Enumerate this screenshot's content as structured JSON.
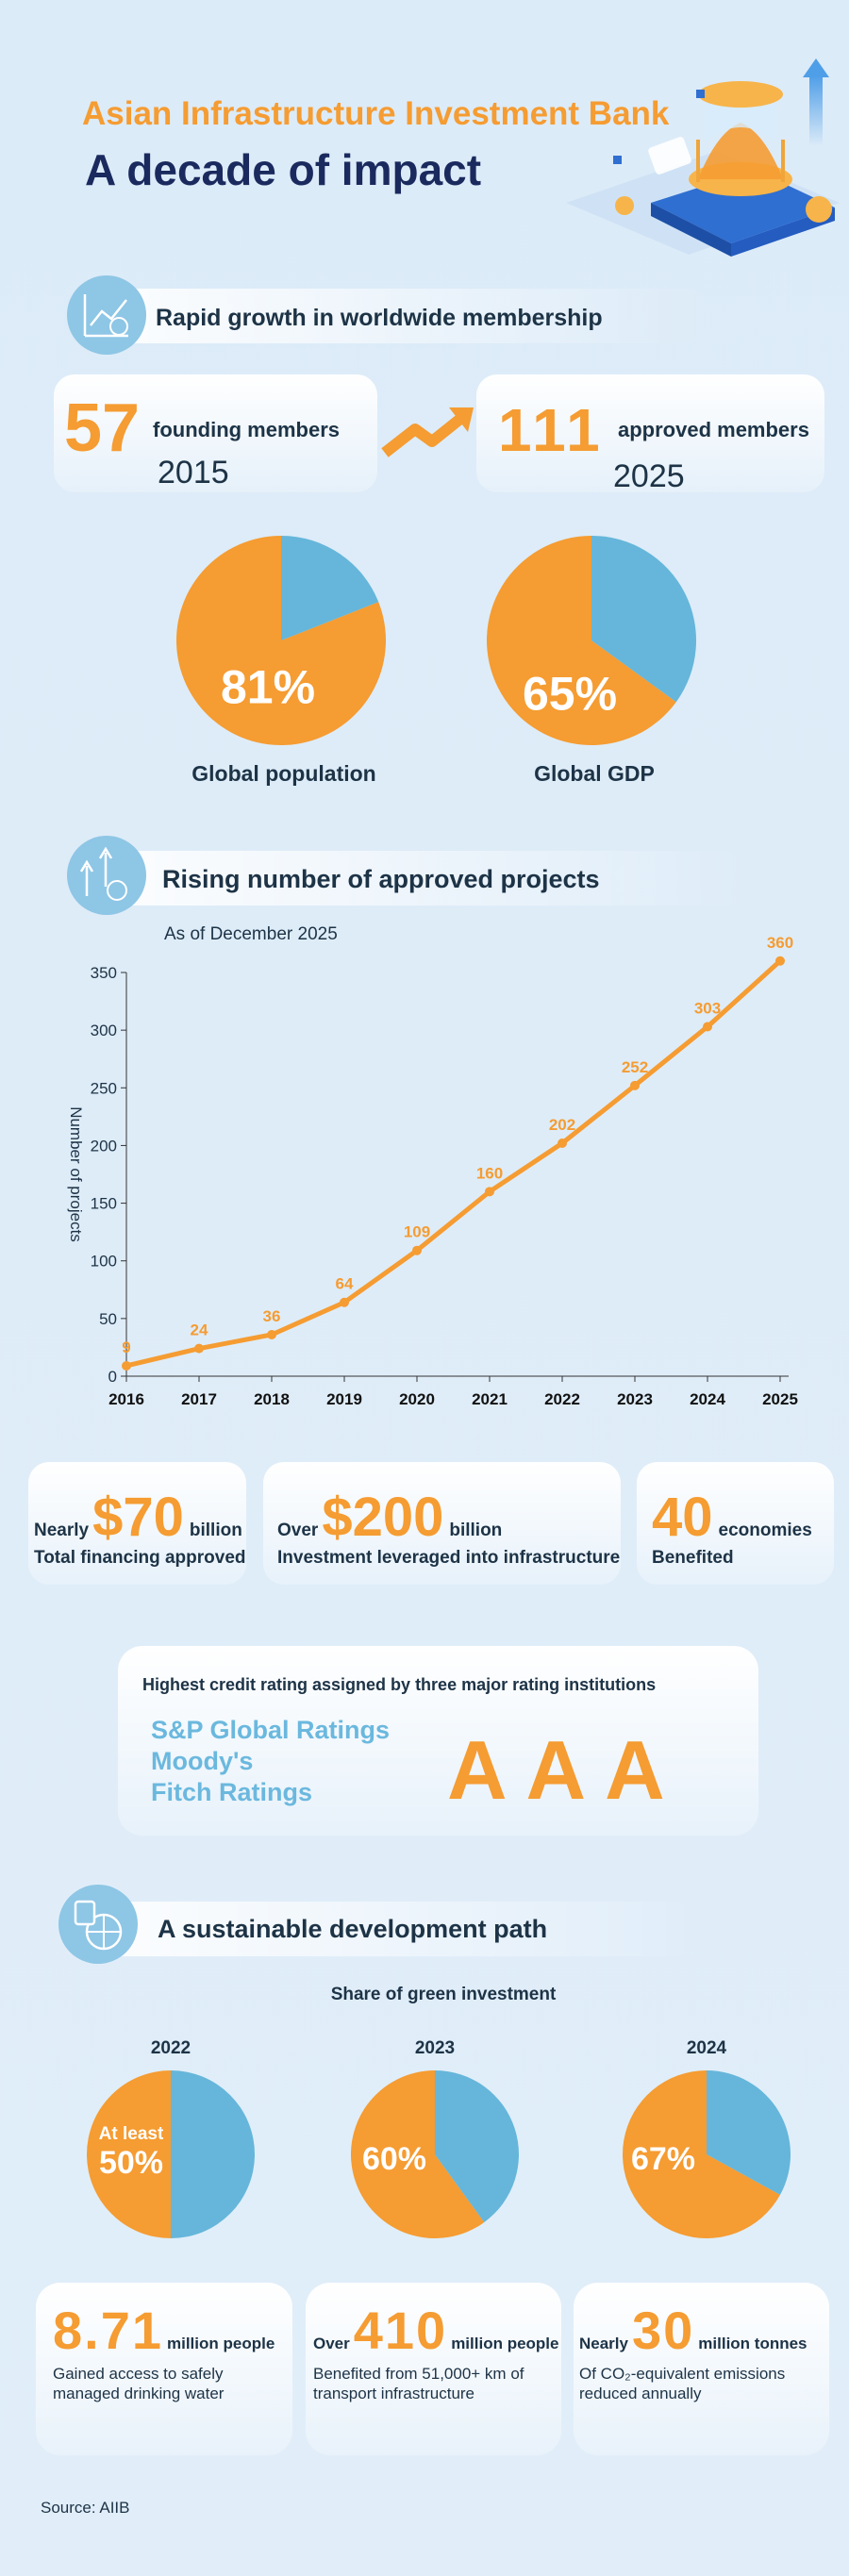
{
  "header": {
    "title": "Asian Infrastructure Investment Bank",
    "subtitle": "A decade of impact"
  },
  "membership": {
    "heading": "Rapid growth in worldwide membership",
    "founding": {
      "number": "57",
      "label": "founding members",
      "year": "2015"
    },
    "approved": {
      "number": "111",
      "label": "approved members",
      "year": "2025"
    }
  },
  "projects": {
    "heading": "Rising number of approved projects",
    "note": "As of December 2025"
  },
  "stats": [
    {
      "prefix": "Nearly",
      "number": "$70",
      "unit": "billion",
      "caption": "Total financing approved"
    },
    {
      "prefix": "Over",
      "number": "$200",
      "unit": "billion",
      "caption": "Investment leveraged into infrastructure"
    },
    {
      "number": "40",
      "unit": "economies",
      "caption": "Benefited"
    }
  ],
  "credit": {
    "heading": "Highest credit rating assigned by three major rating institutions",
    "agencies": [
      "S&P Global Ratings",
      "Moody's",
      "Fitch Ratings"
    ],
    "rating": "AAA"
  },
  "sustainable": {
    "heading": "A sustainable development path",
    "subheading": "Share of green investment"
  },
  "impacts": [
    {
      "number": "8.71",
      "unit": "million people",
      "caption_lines": [
        "Gained access to safely",
        "managed drinking water"
      ]
    },
    {
      "prefix": "Over",
      "number": "410",
      "unit": "million people",
      "caption_lines": [
        "Benefited from 51,000+ km of",
        "transport infrastructure"
      ]
    },
    {
      "prefix": "Nearly",
      "number": "30",
      "unit": "million tonnes",
      "caption_lines": [
        "Of CO₂-equivalent emissions",
        "reduced annually"
      ]
    }
  ],
  "source": "Source: AIIB",
  "chart_data": [
    {
      "type": "pie",
      "title": "Global population",
      "values": [
        81,
        19
      ],
      "value_labels": [
        "81%",
        null
      ],
      "colors": [
        "#f59c32",
        "#65b6da"
      ]
    },
    {
      "type": "pie",
      "title": "Global GDP",
      "values": [
        65,
        35
      ],
      "value_labels": [
        "65%",
        null
      ],
      "colors": [
        "#f59c32",
        "#65b6da"
      ]
    },
    {
      "type": "line",
      "y_label": "Number of projects",
      "x": [
        2016,
        2017,
        2018,
        2019,
        2020,
        2021,
        2022,
        2023,
        2024,
        2025
      ],
      "series": [
        {
          "values": [
            9,
            24,
            36,
            64,
            109,
            160,
            202,
            252,
            303,
            360
          ],
          "color": "#f59c32"
        }
      ],
      "xlim": [
        2016,
        2025
      ],
      "ylim": [
        0,
        350
      ],
      "xticks": [
        2016,
        2017,
        2018,
        2019,
        2020,
        2021,
        2022,
        2023,
        2024,
        2025
      ],
      "yticks": [
        0,
        50,
        100,
        150,
        200,
        250,
        300,
        350
      ],
      "data_labels": true
    },
    {
      "type": "pie",
      "title": "2022",
      "annotation": "At least",
      "values": [
        50,
        50
      ],
      "value_labels": [
        "50%",
        null
      ],
      "colors": [
        "#f59c32",
        "#65b6da"
      ]
    },
    {
      "type": "pie",
      "title": "2023",
      "values": [
        60,
        40
      ],
      "value_labels": [
        "60%",
        null
      ],
      "colors": [
        "#f59c32",
        "#65b6da"
      ]
    },
    {
      "type": "pie",
      "title": "2024",
      "values": [
        67,
        33
      ],
      "value_labels": [
        "67%",
        null
      ],
      "colors": [
        "#f59c32",
        "#65b6da"
      ]
    }
  ]
}
